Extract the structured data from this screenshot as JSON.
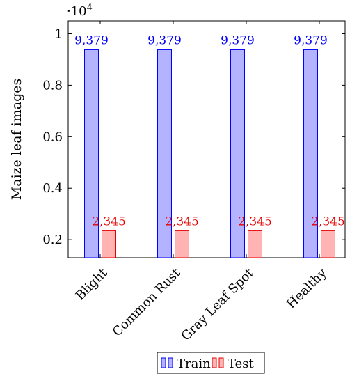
{
  "chart_data": {
    "type": "bar",
    "categories": [
      "Blight",
      "Common Rust",
      "Gray Leaf Spot",
      "Healthy"
    ],
    "series": [
      {
        "name": "Train",
        "values": [
          9379,
          9379,
          9379,
          9379
        ],
        "labels": [
          "9,379",
          "9,379",
          "9,379",
          "9,379"
        ],
        "color": "#b3b3ff",
        "stroke": "#0000ff",
        "label_color": "#0000ff"
      },
      {
        "name": "Test",
        "values": [
          2345,
          2345,
          2345,
          2345
        ],
        "labels": [
          "2,345",
          "2,345",
          "2,345",
          "2,345"
        ],
        "color": "#ffb3b3",
        "stroke": "#e60000",
        "label_color": "#e60000"
      }
    ],
    "ylabel": "Maize leaf images",
    "y_multiplier": "·10",
    "y_multiplier_exp": "4",
    "y_ticks": [
      2000,
      4000,
      6000,
      8000,
      10000
    ],
    "y_tick_labels": [
      "0.2",
      "0.4",
      "0.6",
      "0.8",
      "1"
    ],
    "ylim": [
      1300,
      10500
    ],
    "grid": false,
    "legend_position": "bottom"
  }
}
